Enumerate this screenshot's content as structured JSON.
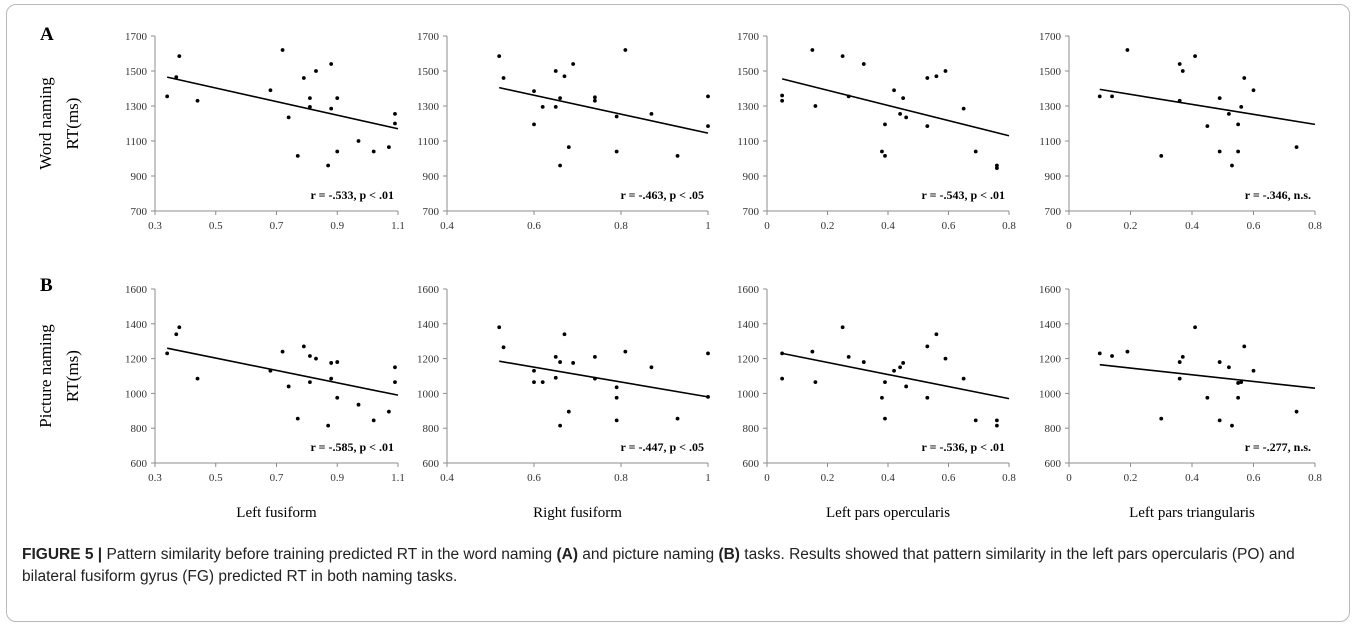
{
  "panel_labels": [
    "A",
    "B"
  ],
  "row_ylabels": [
    [
      "Word naming",
      "RT(ms)"
    ],
    [
      "Picture naming",
      "RT(ms)"
    ]
  ],
  "column_xlabels": [
    "Left fusiform",
    "Right fusiform",
    "Left pars opercularis",
    "Left pars triangularis"
  ],
  "caption": {
    "figure_label": "FIGURE 5 |",
    "text_1": " Pattern similarity before training predicted RT in the word naming ",
    "ref_a": "(A)",
    "text_2": " and picture naming ",
    "ref_b": "(B)",
    "text_3": " tasks. Results showed that pattern similarity in the left pars opercularis (PO) and bilateral fusiform gyrus (FG) predicted RT in both naming tasks."
  },
  "chart_data": [
    {
      "type": "scatter",
      "row": 0,
      "col": 0,
      "xlim": [
        0.3,
        1.1
      ],
      "xticks": [
        "0.3",
        "0.5",
        "0.7",
        "0.9",
        "1.1"
      ],
      "ylim": [
        700,
        1700
      ],
      "yticks": [
        "700",
        "900",
        "1100",
        "1300",
        "1500",
        "1700"
      ],
      "annotation": "r = -.533, p < .01",
      "trendline": [
        [
          0.34,
          1465
        ],
        [
          1.1,
          1170
        ]
      ],
      "points": [
        [
          0.34,
          1355
        ],
        [
          0.37,
          1465
        ],
        [
          0.38,
          1585
        ],
        [
          0.44,
          1330
        ],
        [
          0.68,
          1390
        ],
        [
          0.72,
          1620
        ],
        [
          0.74,
          1235
        ],
        [
          0.77,
          1015
        ],
        [
          0.79,
          1460
        ],
        [
          0.81,
          1345
        ],
        [
          0.81,
          1295
        ],
        [
          0.83,
          1500
        ],
        [
          0.87,
          960
        ],
        [
          0.88,
          1285
        ],
        [
          0.88,
          1540
        ],
        [
          0.9,
          1345
        ],
        [
          0.9,
          1040
        ],
        [
          0.97,
          1100
        ],
        [
          1.02,
          1040
        ],
        [
          1.07,
          1065
        ],
        [
          1.09,
          1200
        ],
        [
          1.09,
          1255
        ]
      ]
    },
    {
      "type": "scatter",
      "row": 0,
      "col": 1,
      "xlim": [
        0.4,
        1.0
      ],
      "xticks": [
        "0.4",
        "0.6",
        "0.8",
        "1"
      ],
      "ylim": [
        700,
        1700
      ],
      "yticks": [
        "700",
        "900",
        "1100",
        "1300",
        "1500",
        "1700"
      ],
      "annotation": "r = -.463, p < .05",
      "trendline": [
        [
          0.52,
          1405
        ],
        [
          1.0,
          1145
        ]
      ],
      "points": [
        [
          0.52,
          1585
        ],
        [
          0.53,
          1460
        ],
        [
          0.6,
          1385
        ],
        [
          0.6,
          1195
        ],
        [
          0.62,
          1295
        ],
        [
          0.65,
          1500
        ],
        [
          0.65,
          1295
        ],
        [
          0.66,
          960
        ],
        [
          0.66,
          1345
        ],
        [
          0.67,
          1470
        ],
        [
          0.68,
          1065
        ],
        [
          0.69,
          1540
        ],
        [
          0.74,
          1350
        ],
        [
          0.74,
          1330
        ],
        [
          0.79,
          1240
        ],
        [
          0.79,
          1040
        ],
        [
          0.81,
          1620
        ],
        [
          0.87,
          1255
        ],
        [
          0.93,
          1015
        ],
        [
          1.0,
          1355
        ],
        [
          1.0,
          1185
        ]
      ]
    },
    {
      "type": "scatter",
      "row": 0,
      "col": 2,
      "xlim": [
        0,
        0.8
      ],
      "xticks": [
        "0",
        "0.2",
        "0.4",
        "0.6",
        "0.8"
      ],
      "ylim": [
        700,
        1700
      ],
      "yticks": [
        "700",
        "900",
        "1100",
        "1300",
        "1500",
        "1700"
      ],
      "annotation": "r = -.543, p < .01",
      "trendline": [
        [
          0.05,
          1455
        ],
        [
          0.8,
          1130
        ]
      ],
      "points": [
        [
          0.05,
          1360
        ],
        [
          0.05,
          1330
        ],
        [
          0.15,
          1620
        ],
        [
          0.16,
          1300
        ],
        [
          0.25,
          1585
        ],
        [
          0.27,
          1355
        ],
        [
          0.32,
          1540
        ],
        [
          0.38,
          1040
        ],
        [
          0.39,
          1195
        ],
        [
          0.39,
          1015
        ],
        [
          0.42,
          1390
        ],
        [
          0.44,
          1255
        ],
        [
          0.45,
          1345
        ],
        [
          0.46,
          1235
        ],
        [
          0.53,
          1460
        ],
        [
          0.53,
          1185
        ],
        [
          0.56,
          1470
        ],
        [
          0.59,
          1500
        ],
        [
          0.65,
          1285
        ],
        [
          0.69,
          1040
        ],
        [
          0.76,
          960
        ],
        [
          0.76,
          945
        ]
      ]
    },
    {
      "type": "scatter",
      "row": 0,
      "col": 3,
      "xlim": [
        0,
        0.8
      ],
      "xticks": [
        "0",
        "0.2",
        "0.4",
        "0.6",
        "0.8"
      ],
      "ylim": [
        700,
        1700
      ],
      "yticks": [
        "700",
        "900",
        "1100",
        "1300",
        "1500",
        "1700"
      ],
      "annotation": "r = -.346, n.s.",
      "trendline": [
        [
          0.1,
          1395
        ],
        [
          0.8,
          1195
        ]
      ],
      "points": [
        [
          0.1,
          1355
        ],
        [
          0.14,
          1355
        ],
        [
          0.19,
          1620
        ],
        [
          0.3,
          1015
        ],
        [
          0.36,
          1540
        ],
        [
          0.36,
          1330
        ],
        [
          0.37,
          1500
        ],
        [
          0.41,
          1585
        ],
        [
          0.45,
          1185
        ],
        [
          0.49,
          1345
        ],
        [
          0.49,
          1040
        ],
        [
          0.52,
          1255
        ],
        [
          0.53,
          960
        ],
        [
          0.55,
          1195
        ],
        [
          0.55,
          1040
        ],
        [
          0.56,
          1295
        ],
        [
          0.57,
          1460
        ],
        [
          0.6,
          1390
        ],
        [
          0.74,
          1065
        ]
      ]
    },
    {
      "type": "scatter",
      "row": 1,
      "col": 0,
      "xlim": [
        0.3,
        1.1
      ],
      "xticks": [
        "0.3",
        "0.5",
        "0.7",
        "0.9",
        "1.1"
      ],
      "ylim": [
        600,
        1600
      ],
      "yticks": [
        "600",
        "800",
        "1000",
        "1200",
        "1400",
        "1600"
      ],
      "annotation": "r = -.585, p < .01",
      "trendline": [
        [
          0.34,
          1260
        ],
        [
          1.1,
          990
        ]
      ],
      "points": [
        [
          0.34,
          1230
        ],
        [
          0.37,
          1340
        ],
        [
          0.38,
          1380
        ],
        [
          0.44,
          1085
        ],
        [
          0.68,
          1130
        ],
        [
          0.72,
          1240
        ],
        [
          0.74,
          1040
        ],
        [
          0.77,
          855
        ],
        [
          0.79,
          1270
        ],
        [
          0.81,
          1215
        ],
        [
          0.81,
          1065
        ],
        [
          0.83,
          1200
        ],
        [
          0.87,
          815
        ],
        [
          0.88,
          1085
        ],
        [
          0.88,
          1175
        ],
        [
          0.9,
          1180
        ],
        [
          0.9,
          975
        ],
        [
          0.97,
          935
        ],
        [
          1.02,
          845
        ],
        [
          1.07,
          895
        ],
        [
          1.09,
          1150
        ],
        [
          1.09,
          1065
        ]
      ]
    },
    {
      "type": "scatter",
      "row": 1,
      "col": 1,
      "xlim": [
        0.4,
        1.0
      ],
      "xticks": [
        "0.4",
        "0.6",
        "0.8",
        "1"
      ],
      "ylim": [
        600,
        1600
      ],
      "yticks": [
        "600",
        "800",
        "1000",
        "1200",
        "1400",
        "1600"
      ],
      "annotation": "r = -.447, p < .05",
      "trendline": [
        [
          0.52,
          1185
        ],
        [
          1.0,
          980
        ]
      ],
      "points": [
        [
          0.52,
          1380
        ],
        [
          0.53,
          1265
        ],
        [
          0.6,
          1130
        ],
        [
          0.6,
          1065
        ],
        [
          0.62,
          1065
        ],
        [
          0.65,
          1210
        ],
        [
          0.65,
          1090
        ],
        [
          0.66,
          815
        ],
        [
          0.66,
          1180
        ],
        [
          0.67,
          1340
        ],
        [
          0.68,
          895
        ],
        [
          0.69,
          1175
        ],
        [
          0.74,
          1210
        ],
        [
          0.74,
          1085
        ],
        [
          0.79,
          1035
        ],
        [
          0.79,
          975
        ],
        [
          0.79,
          845
        ],
        [
          0.81,
          1240
        ],
        [
          0.87,
          1150
        ],
        [
          0.93,
          855
        ],
        [
          1.0,
          1230
        ],
        [
          1.0,
          980
        ]
      ]
    },
    {
      "type": "scatter",
      "row": 1,
      "col": 2,
      "xlim": [
        0,
        0.8
      ],
      "xticks": [
        "0",
        "0.2",
        "0.4",
        "0.6",
        "0.8"
      ],
      "ylim": [
        600,
        1600
      ],
      "yticks": [
        "600",
        "800",
        "1000",
        "1200",
        "1400",
        "1600"
      ],
      "annotation": "r = -.536, p < .01",
      "trendline": [
        [
          0.05,
          1230
        ],
        [
          0.8,
          970
        ]
      ],
      "points": [
        [
          0.05,
          1230
        ],
        [
          0.05,
          1085
        ],
        [
          0.15,
          1240
        ],
        [
          0.16,
          1065
        ],
        [
          0.25,
          1380
        ],
        [
          0.27,
          1210
        ],
        [
          0.32,
          1180
        ],
        [
          0.38,
          975
        ],
        [
          0.39,
          1065
        ],
        [
          0.39,
          855
        ],
        [
          0.42,
          1130
        ],
        [
          0.44,
          1150
        ],
        [
          0.45,
          1175
        ],
        [
          0.46,
          1040
        ],
        [
          0.53,
          1270
        ],
        [
          0.53,
          975
        ],
        [
          0.56,
          1340
        ],
        [
          0.59,
          1200
        ],
        [
          0.65,
          1085
        ],
        [
          0.69,
          845
        ],
        [
          0.76,
          845
        ],
        [
          0.76,
          815
        ]
      ]
    },
    {
      "type": "scatter",
      "row": 1,
      "col": 3,
      "xlim": [
        0,
        0.8
      ],
      "xticks": [
        "0",
        "0.2",
        "0.4",
        "0.6",
        "0.8"
      ],
      "ylim": [
        600,
        1600
      ],
      "yticks": [
        "600",
        "800",
        "1000",
        "1200",
        "1400",
        "1600"
      ],
      "annotation": "r = -.277, n.s.",
      "trendline": [
        [
          0.1,
          1165
        ],
        [
          0.8,
          1030
        ]
      ],
      "points": [
        [
          0.1,
          1230
        ],
        [
          0.14,
          1215
        ],
        [
          0.19,
          1240
        ],
        [
          0.3,
          855
        ],
        [
          0.36,
          1180
        ],
        [
          0.36,
          1085
        ],
        [
          0.37,
          1210
        ],
        [
          0.41,
          1380
        ],
        [
          0.45,
          975
        ],
        [
          0.49,
          845
        ],
        [
          0.49,
          1180
        ],
        [
          0.52,
          1150
        ],
        [
          0.53,
          815
        ],
        [
          0.55,
          975
        ],
        [
          0.55,
          1060
        ],
        [
          0.56,
          1065
        ],
        [
          0.57,
          1270
        ],
        [
          0.6,
          1130
        ],
        [
          0.74,
          895
        ]
      ]
    }
  ]
}
